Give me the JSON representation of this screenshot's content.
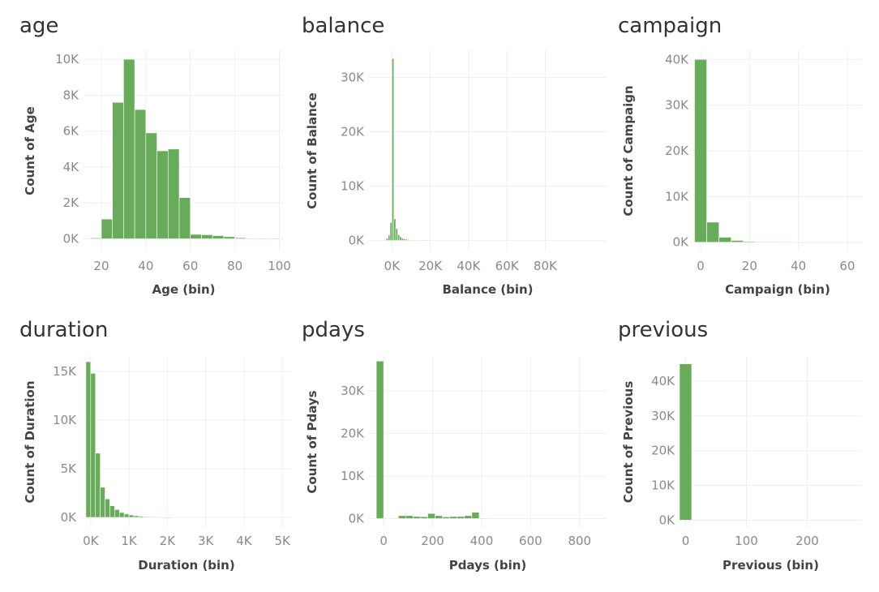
{
  "chart_data": [
    {
      "type": "bar",
      "title": "age",
      "xlabel": "Age (bin)",
      "ylabel": "Count of Age",
      "xlim": [
        12,
        102
      ],
      "ylim": [
        -700,
        10500
      ],
      "bin_width": 5,
      "bin_starts": [
        15,
        20,
        25,
        30,
        35,
        40,
        45,
        50,
        55,
        60,
        65,
        70,
        75,
        80,
        85,
        90,
        95
      ],
      "values": [
        50,
        1100,
        7600,
        10000,
        7200,
        5900,
        4900,
        5000,
        2300,
        250,
        230,
        180,
        120,
        60,
        30,
        10,
        5
      ],
      "xticks": [
        {
          "value": 20,
          "label": "20"
        },
        {
          "value": 40,
          "label": "40"
        },
        {
          "value": 60,
          "label": "60"
        },
        {
          "value": 80,
          "label": "80"
        },
        {
          "value": 100,
          "label": "100"
        }
      ],
      "yticks": [
        {
          "value": 0,
          "label": "0K"
        },
        {
          "value": 2000,
          "label": "2K"
        },
        {
          "value": 4000,
          "label": "4K"
        },
        {
          "value": 6000,
          "label": "6K"
        },
        {
          "value": 8000,
          "label": "8K"
        },
        {
          "value": 10000,
          "label": "10K"
        }
      ],
      "grid": true,
      "color": "#68ab5b"
    },
    {
      "type": "bar",
      "title": "balance",
      "xlabel": "Balance (bin)",
      "ylabel": "Count of Balance",
      "xlim": [
        -12000,
        112000
      ],
      "ylim": [
        -2000,
        35000
      ],
      "bin_width": 1000,
      "bin_starts": [
        -4000,
        -3000,
        -2000,
        -1000,
        0,
        1000,
        2000,
        3000,
        4000,
        5000,
        6000,
        7000,
        8000,
        9000,
        10000,
        11000,
        12000,
        13000,
        14000,
        15000,
        16000,
        17000,
        18000,
        19000
      ],
      "values": [
        100,
        400,
        1000,
        3300,
        33500,
        4000,
        2200,
        1100,
        700,
        450,
        320,
        240,
        180,
        140,
        110,
        90,
        70,
        55,
        45,
        35,
        28,
        22,
        18,
        15
      ],
      "xticks": [
        {
          "value": 0,
          "label": "0K"
        },
        {
          "value": 20000,
          "label": "20K"
        },
        {
          "value": 40000,
          "label": "40K"
        },
        {
          "value": 60000,
          "label": "60K"
        },
        {
          "value": 80000,
          "label": "80K"
        }
      ],
      "yticks": [
        {
          "value": 0,
          "label": "0K"
        },
        {
          "value": 10000,
          "label": "10K"
        },
        {
          "value": 20000,
          "label": "20K"
        },
        {
          "value": 30000,
          "label": "30K"
        }
      ],
      "grid": true,
      "color": "#68ab5b"
    },
    {
      "type": "bar",
      "title": "campaign",
      "xlabel": "Campaign (bin)",
      "ylabel": "Count of Campaign",
      "xlim": [
        -3,
        66
      ],
      "ylim": [
        -2000,
        42000
      ],
      "bin_width": 5,
      "bin_starts": [
        -2.5,
        2.5,
        7.5,
        12.5,
        17.5,
        22.5,
        27.5,
        32.5,
        37.5
      ],
      "values": [
        40000,
        4400,
        1100,
        400,
        200,
        100,
        60,
        30,
        20
      ],
      "xticks": [
        {
          "value": 0,
          "label": "0"
        },
        {
          "value": 20,
          "label": "20"
        },
        {
          "value": 40,
          "label": "40"
        },
        {
          "value": 60,
          "label": "60"
        }
      ],
      "yticks": [
        {
          "value": 0,
          "label": "0K"
        },
        {
          "value": 10000,
          "label": "10K"
        },
        {
          "value": 20000,
          "label": "20K"
        },
        {
          "value": 30000,
          "label": "30K"
        },
        {
          "value": 40000,
          "label": "40K"
        }
      ],
      "grid": true,
      "color": "#68ab5b"
    },
    {
      "type": "bar",
      "title": "duration",
      "xlabel": "Duration (bin)",
      "ylabel": "Count of Duration",
      "xlim": [
        -250,
        5250
      ],
      "ylim": [
        -1000,
        16500
      ],
      "bin_width": 125,
      "bin_starts": [
        -125,
        0,
        125,
        250,
        375,
        500,
        625,
        750,
        875,
        1000,
        1125,
        1250,
        1375,
        1500,
        1625,
        1750,
        1875,
        2000
      ],
      "values": [
        16000,
        14800,
        6600,
        3100,
        1900,
        1200,
        800,
        500,
        350,
        250,
        170,
        120,
        80,
        55,
        40,
        28,
        20,
        15
      ],
      "xticks": [
        {
          "value": 0,
          "label": "0K"
        },
        {
          "value": 1000,
          "label": "1K"
        },
        {
          "value": 2000,
          "label": "2K"
        },
        {
          "value": 3000,
          "label": "3K"
        },
        {
          "value": 4000,
          "label": "4K"
        },
        {
          "value": 5000,
          "label": "5K"
        }
      ],
      "yticks": [
        {
          "value": 0,
          "label": "0K"
        },
        {
          "value": 5000,
          "label": "5K"
        },
        {
          "value": 10000,
          "label": "10K"
        },
        {
          "value": 15000,
          "label": "15K"
        }
      ],
      "grid": true,
      "color": "#68ab5b"
    },
    {
      "type": "bar",
      "title": "pdays",
      "xlabel": "Pdays (bin)",
      "ylabel": "Count of Pdays",
      "xlim": [
        -60,
        910
      ],
      "ylim": [
        -2000,
        38000
      ],
      "bin_width": 30,
      "bin_starts": [
        -30,
        60,
        90,
        120,
        150,
        180,
        210,
        240,
        270,
        300,
        330,
        360,
        390
      ],
      "values": [
        37000,
        700,
        700,
        500,
        450,
        1200,
        700,
        400,
        500,
        500,
        700,
        1500,
        100
      ],
      "xticks": [
        {
          "value": 0,
          "label": "0"
        },
        {
          "value": 200,
          "label": "200"
        },
        {
          "value": 400,
          "label": "400"
        },
        {
          "value": 600,
          "label": "600"
        },
        {
          "value": 800,
          "label": "800"
        }
      ],
      "yticks": [
        {
          "value": 0,
          "label": "0K"
        },
        {
          "value": 10000,
          "label": "10K"
        },
        {
          "value": 20000,
          "label": "20K"
        },
        {
          "value": 30000,
          "label": "30K"
        }
      ],
      "grid": true,
      "color": "#68ab5b"
    },
    {
      "type": "bar",
      "title": "previous",
      "xlabel": "Previous (bin)",
      "ylabel": "Count of Previous",
      "xlim": [
        -10,
        290
      ],
      "ylim": [
        -2000,
        47000
      ],
      "bin_width": 20,
      "bin_starts": [
        -10
      ],
      "values": [
        45000
      ],
      "xticks": [
        {
          "value": 0,
          "label": "0"
        },
        {
          "value": 100,
          "label": "100"
        },
        {
          "value": 200,
          "label": "200"
        }
      ],
      "yticks": [
        {
          "value": 0,
          "label": "0K"
        },
        {
          "value": 10000,
          "label": "10K"
        },
        {
          "value": 20000,
          "label": "20K"
        },
        {
          "value": 30000,
          "label": "30K"
        },
        {
          "value": 40000,
          "label": "40K"
        }
      ],
      "grid": true,
      "color": "#68ab5b"
    }
  ]
}
